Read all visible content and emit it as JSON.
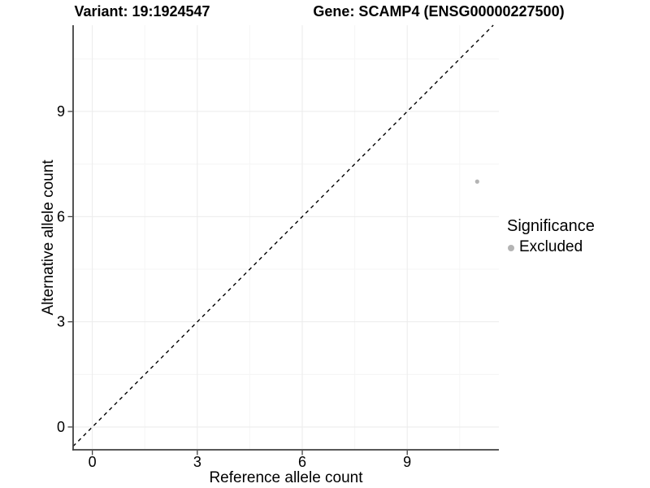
{
  "chart_data": {
    "type": "scatter",
    "title_left": "Variant: 19:1924547",
    "title_right": "Gene: SCAMP4 (ENSG00000227500)",
    "xlabel": "Reference allele count",
    "ylabel": "Alternative allele count",
    "x_ticks": [
      0,
      3,
      6,
      9
    ],
    "y_ticks": [
      0,
      3,
      6,
      9
    ],
    "xlim": [
      -0.55,
      11.62
    ],
    "ylim": [
      -0.65,
      11.46
    ],
    "grid": "major+minor on, white panel background, axis lines left+bottom only",
    "points": [
      {
        "x": 11,
        "y": 7,
        "series": "Excluded"
      }
    ],
    "reference_line": {
      "slope": 1,
      "intercept": 0,
      "style": "dashed",
      "color": "#000000"
    },
    "legend": {
      "title": "Significance",
      "position": "right",
      "entries": [
        {
          "label": "Excluded",
          "color": "#b4b4b4"
        }
      ]
    },
    "colors": {
      "point": "#b4b4b4",
      "grid_major": "#ebebeb",
      "grid_minor": "#f5f5f5",
      "axis_line": "#404040",
      "tick_mark": "#333333",
      "text": "#000000",
      "background": "#ffffff"
    }
  }
}
